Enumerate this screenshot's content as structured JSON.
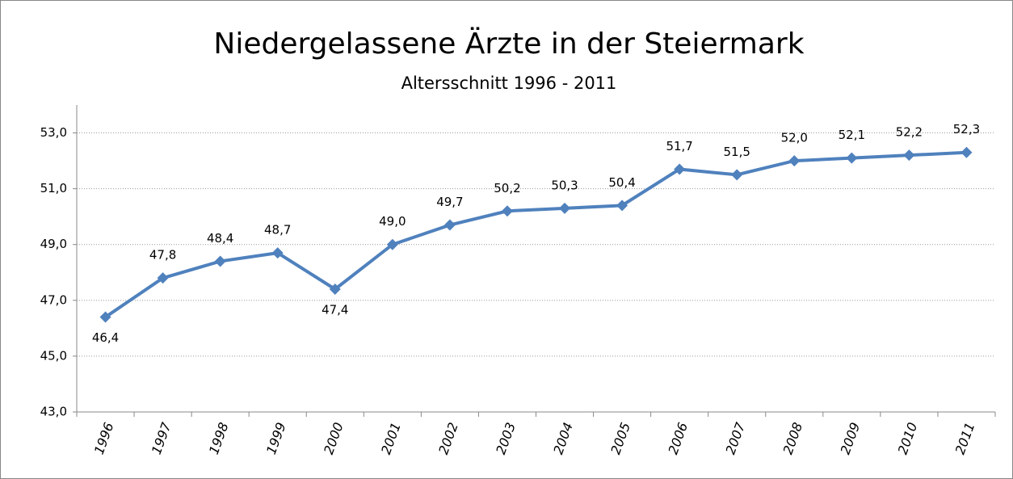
{
  "chart_data": {
    "type": "line",
    "title": "Niedergelassene Ärzte in der Steiermark",
    "subtitle": "Altersschnitt 1996 - 2011",
    "categories": [
      "1996",
      "1997",
      "1998",
      "1999",
      "2000",
      "2001",
      "2002",
      "2003",
      "2004",
      "2005",
      "2006",
      "2007",
      "2008",
      "2009",
      "2010",
      "2011"
    ],
    "values": [
      46.4,
      47.8,
      48.4,
      48.7,
      47.4,
      49.0,
      49.7,
      50.2,
      50.3,
      50.4,
      51.7,
      51.5,
      52.0,
      52.1,
      52.2,
      52.3
    ],
    "value_labels": [
      "46,4",
      "47,8",
      "48,4",
      "48,7",
      "47,4",
      "49,0",
      "49,7",
      "50,2",
      "50,3",
      "50,4",
      "51,7",
      "51,5",
      "52,0",
      "52,1",
      "52,2",
      "52,3"
    ],
    "color": "#4f81bd",
    "ylim": [
      43,
      54
    ],
    "yticks": [
      {
        "value": 43,
        "label": "43,0"
      },
      {
        "value": 45,
        "label": "45,0"
      },
      {
        "value": 47,
        "label": "47,0"
      },
      {
        "value": 49,
        "label": "49,0"
      },
      {
        "value": 51,
        "label": "51,0"
      },
      {
        "value": 53,
        "label": "53,0"
      }
    ],
    "grid": true
  }
}
